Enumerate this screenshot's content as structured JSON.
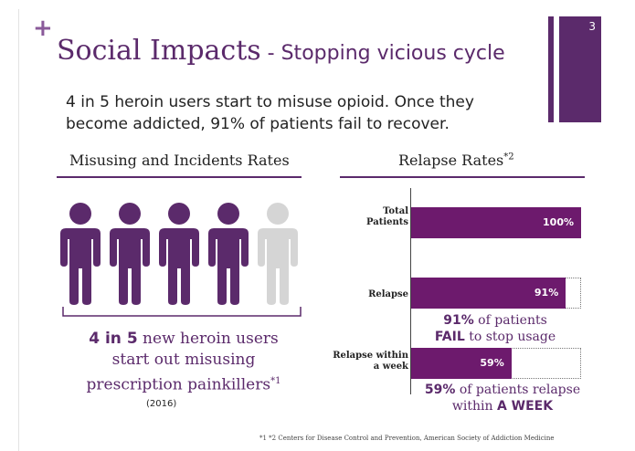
{
  "slide": {
    "number": "3",
    "plus_symbol": "+",
    "title_main": "Social Impacts",
    "title_sub": " - Stopping vicious cycle",
    "intro_line1": "4 in 5 heroin users start to misuse opioid. Once they",
    "intro_line2": "become addicted, 91% of patients fail to recover."
  },
  "left_panel": {
    "header": "Misusing and Incidents Rates",
    "people_total": 5,
    "people_highlighted": 4,
    "stat_num": "4 in 5",
    "stat_rest": " new heroin users",
    "stat_line2": "start out misusing",
    "stat_line3": "prescription painkillers",
    "stat_footnote_mark": "*1",
    "year": "(2016)",
    "colors": {
      "highlight": "#5b2a6b",
      "dim": "#d5d5d5"
    }
  },
  "right_panel": {
    "header": "Relapse Rates",
    "header_mark": "*2",
    "note1_num": "91%",
    "note1_rest": " of patients",
    "note1_line2_bold": "FAIL",
    "note1_line2_rest": " to stop usage",
    "note2_num": "59%",
    "note2_rest": " of patients relapse",
    "note2_line2": "within ",
    "note2_line2_bold": "A WEEK"
  },
  "chart_data": {
    "type": "bar",
    "orientation": "horizontal",
    "title": "Relapse Rates*2",
    "categories": [
      "Total Patients",
      "Relapse",
      "Relapse within a week"
    ],
    "category_lines": [
      [
        "Total",
        "Patients"
      ],
      [
        "Relapse"
      ],
      [
        "Relapse within",
        "a week"
      ]
    ],
    "values": [
      100,
      91,
      59
    ],
    "value_labels": [
      "100%",
      "91%",
      "59%"
    ],
    "xlim": [
      0,
      100
    ],
    "bar_color": "#6d1a6d"
  },
  "footnote": "*1 *2  Centers for Disease Control and Prevention, American Society of Addiction Medicine"
}
